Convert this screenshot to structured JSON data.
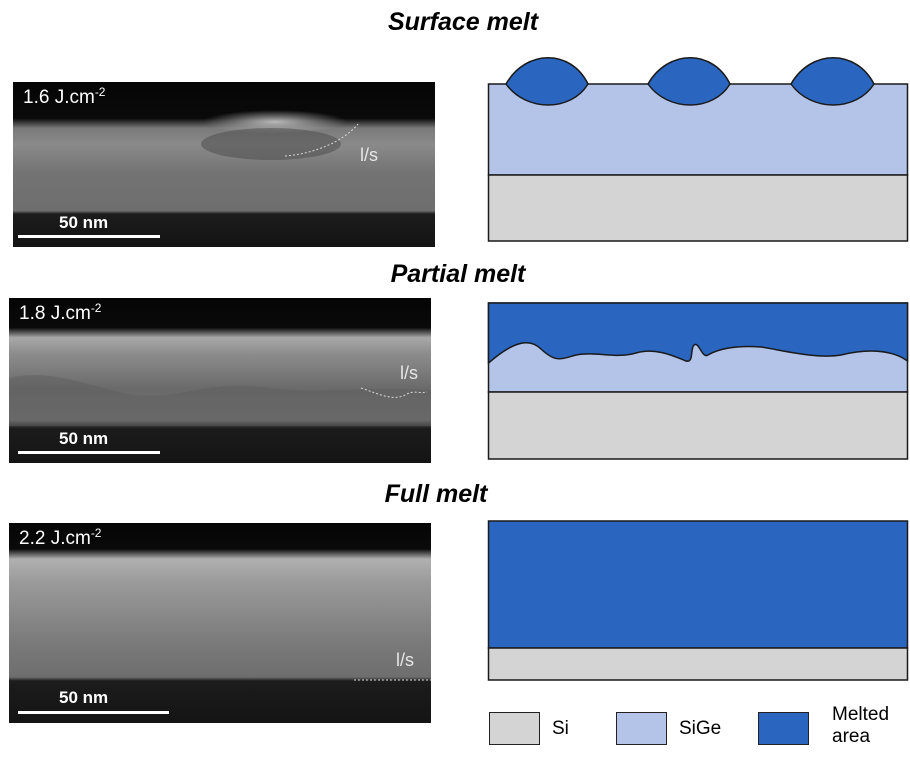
{
  "titles": {
    "surface": "Surface melt",
    "partial": "Partial melt",
    "full": "Full melt"
  },
  "panels": [
    {
      "fluence_value": "1.6 J.cm",
      "fluence_exp": "-2",
      "interface_label": "l/s",
      "scale_label": "50 nm"
    },
    {
      "fluence_value": "1.8 J.cm",
      "fluence_exp": "-2",
      "interface_label": "l/s",
      "scale_label": "50 nm"
    },
    {
      "fluence_value": "2.2 J.cm",
      "fluence_exp": "-2",
      "interface_label": "l/s",
      "scale_label": "50 nm"
    }
  ],
  "legend": [
    {
      "label": "Si",
      "color": "#d4d4d4"
    },
    {
      "label": "SiGe",
      "color": "#b4c4e8"
    },
    {
      "label": "Melted area",
      "color": "#2a66c0"
    }
  ],
  "colors": {
    "si": "#d4d4d4",
    "sige": "#b4c4e8",
    "melt": "#2a66c0",
    "outline": "#1a1a1a"
  }
}
